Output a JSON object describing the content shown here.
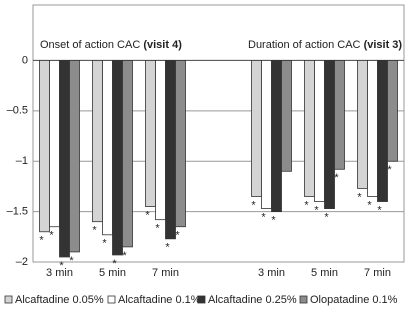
{
  "chart_data": {
    "type": "bar",
    "annotations": [
      {
        "text": "Onset of action CAC",
        "bold": "(visit 4)"
      },
      {
        "text": "Duration of action CAC",
        "bold": "(visit 3)"
      }
    ],
    "categories": [
      "3 min",
      "5 min",
      "7 min",
      null,
      "3 min",
      "5 min",
      "7 min"
    ],
    "series": [
      {
        "name": "Alcaftadine 0.05%",
        "color": "#d4d4d4",
        "values": [
          -1.7,
          -1.6,
          -1.45,
          null,
          -1.35,
          -1.35,
          -1.27
        ],
        "significant": [
          true,
          true,
          true,
          null,
          true,
          true,
          true
        ]
      },
      {
        "name": "Alcaftadine 0.1%",
        "color": "#ffffff",
        "values": [
          -1.65,
          -1.73,
          -1.58,
          null,
          -1.47,
          -1.4,
          -1.35
        ],
        "significant": [
          true,
          true,
          true,
          null,
          true,
          true,
          true
        ]
      },
      {
        "name": "Alcaftadine 0.25%",
        "color": "#333333",
        "values": [
          -1.95,
          -1.93,
          -1.77,
          null,
          -1.5,
          -1.47,
          -1.4
        ],
        "significant": [
          true,
          true,
          true,
          null,
          true,
          true,
          true
        ]
      },
      {
        "name": "Olopatadine 0.1%",
        "color": "#8c8c8c",
        "values": [
          -1.9,
          -1.85,
          -1.65,
          null,
          -1.1,
          -1.08,
          -1.0
        ],
        "significant": [
          true,
          true,
          true,
          null,
          false,
          true,
          true
        ]
      }
    ],
    "significance_marker": "*",
    "ylim": [
      -2,
      0.55
    ],
    "yticks": [
      0,
      {
        "value": -0.5,
        "label": "–0.5"
      },
      {
        "value": -1,
        "label": "–1"
      },
      {
        "value": -1.5,
        "label": "–1.5"
      },
      {
        "value": -2,
        "label": "–2"
      }
    ],
    "grid": true
  }
}
